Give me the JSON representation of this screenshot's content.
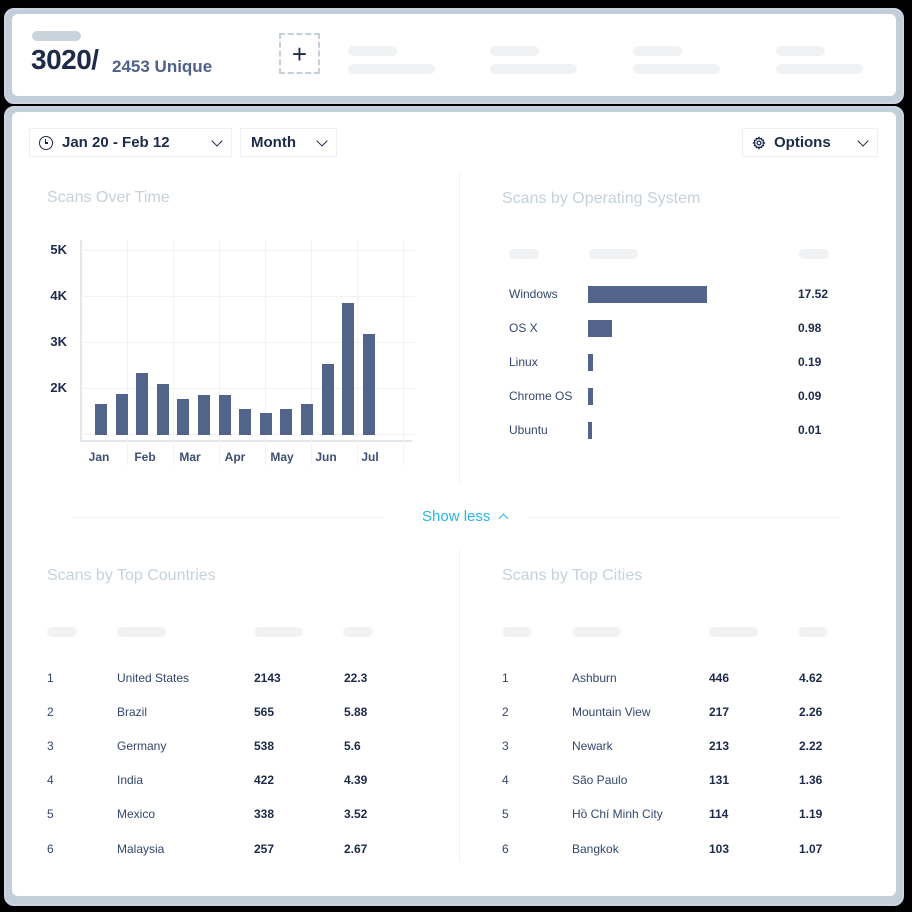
{
  "header": {
    "total_scans": "3020/",
    "unique_label": "2453 Unique",
    "add_button_icon": "plus-icon"
  },
  "filters": {
    "date_range": "Jan 20 - Feb 12",
    "date_icon": "clock-icon",
    "granularity": "Month",
    "options_label": "Options",
    "options_icon": "gear-icon"
  },
  "scans_over_time": {
    "title": "Scans Over Time"
  },
  "os_panel": {
    "title": "Scans by Operating System",
    "rows": [
      {
        "name": "Windows",
        "value": "17.52"
      },
      {
        "name": "OS X",
        "value": "0.98"
      },
      {
        "name": "Linux",
        "value": "0.19"
      },
      {
        "name": "Chrome OS",
        "value": "0.09"
      },
      {
        "name": "Ubuntu",
        "value": "0.01"
      }
    ]
  },
  "toggle": {
    "label": "Show less",
    "icon": "chevron-up-icon"
  },
  "countries": {
    "title": "Scans by Top Countries",
    "rows": [
      {
        "rank": "1",
        "name": "United States",
        "count": "2143",
        "pct": "22.3"
      },
      {
        "rank": "2",
        "name": "Brazil",
        "count": "565",
        "pct": "5.88"
      },
      {
        "rank": "3",
        "name": "Germany",
        "count": "538",
        "pct": "5.6"
      },
      {
        "rank": "4",
        "name": "India",
        "count": "422",
        "pct": "4.39"
      },
      {
        "rank": "5",
        "name": "Mexico",
        "count": "338",
        "pct": "3.52"
      },
      {
        "rank": "6",
        "name": "Malaysia",
        "count": "257",
        "pct": "2.67"
      }
    ]
  },
  "cities": {
    "title": "Scans by Top Cities",
    "rows": [
      {
        "rank": "1",
        "name": "Ashburn",
        "count": "446",
        "pct": "4.62"
      },
      {
        "rank": "2",
        "name": "Mountain View",
        "count": "217",
        "pct": "2.26"
      },
      {
        "rank": "3",
        "name": "Newark",
        "count": "213",
        "pct": "2.22"
      },
      {
        "rank": "4",
        "name": "São Paulo",
        "count": "131",
        "pct": "1.36"
      },
      {
        "rank": "5",
        "name": "Hồ Chí Minh City",
        "count": "114",
        "pct": "1.19"
      },
      {
        "rank": "6",
        "name": "Bangkok",
        "count": "103",
        "pct": "1.07"
      }
    ]
  },
  "colors": {
    "bar": "#52648a",
    "accent": "#25b6ea",
    "text_dark": "#1e2a4a",
    "title_muted": "#c6d1da",
    "frame": "#c3cfd8"
  },
  "chart_data": [
    {
      "type": "bar",
      "title": "Scans Over Time",
      "xlabel": "",
      "ylabel": "",
      "categories": [
        "Jan",
        "",
        "Feb",
        "",
        "Mar",
        "",
        "Apr",
        "",
        "May",
        "",
        "Jun",
        "",
        "",
        "Jul"
      ],
      "x_tick_labels": [
        "Jan",
        "Feb",
        "Mar",
        "Apr",
        "May",
        "Jun",
        "Jul"
      ],
      "y_tick_labels": [
        "2K",
        "3K",
        "4K",
        "5K"
      ],
      "values": [
        1670,
        1900,
        2350,
        2100,
        1780,
        1880,
        1880,
        1570,
        1480,
        1560,
        1670,
        2550,
        3880,
        3200
      ],
      "ylim": [
        1000,
        5000
      ],
      "grid": true,
      "legend": "none"
    },
    {
      "type": "bar",
      "orientation": "horizontal",
      "title": "Scans by Operating System",
      "categories": [
        "Windows",
        "OS X",
        "Linux",
        "Chrome OS",
        "Ubuntu"
      ],
      "values": [
        17.52,
        0.98,
        0.19,
        0.09,
        0.01
      ]
    }
  ]
}
